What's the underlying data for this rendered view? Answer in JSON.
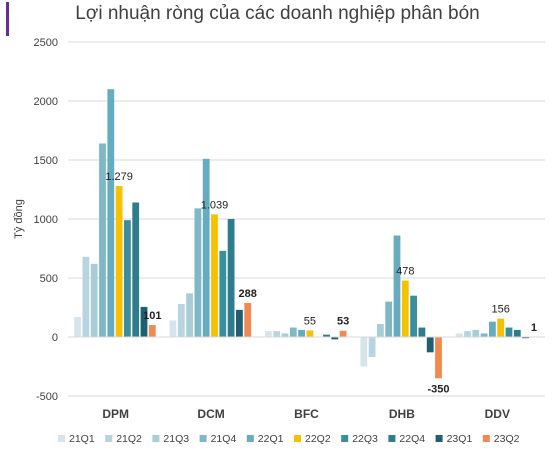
{
  "chart_data": {
    "type": "bar",
    "title": "Lợi nhuận ròng của các doanh nghiệp phân bón",
    "ylabel": "Tỷ đồng",
    "xlabel": "",
    "ylim": [
      -500,
      2500
    ],
    "yticks": [
      "-500",
      "0",
      "500",
      "1000",
      "1500",
      "2000",
      "2500"
    ],
    "grid": true,
    "legend_position": "bottom",
    "categories": [
      "DPM",
      "DCM",
      "BFC",
      "DHB",
      "DDV"
    ],
    "series": [
      {
        "name": "21Q1",
        "color": "#d6e4ec",
        "values": [
          170,
          140,
          50,
          -250,
          30
        ]
      },
      {
        "name": "21Q2",
        "color": "#b7d5e0",
        "values": [
          680,
          280,
          50,
          -170,
          50
        ]
      },
      {
        "name": "21Q3",
        "color": "#a8cdd7",
        "values": [
          620,
          370,
          30,
          110,
          60
        ]
      },
      {
        "name": "21Q4",
        "color": "#7fb7c6",
        "values": [
          1640,
          1090,
          80,
          300,
          30
        ]
      },
      {
        "name": "22Q1",
        "color": "#66acc1",
        "values": [
          2100,
          1510,
          60,
          860,
          130
        ]
      },
      {
        "name": "22Q2",
        "color": "#f5c100",
        "values": [
          1279,
          1039,
          55,
          478,
          156
        ]
      },
      {
        "name": "22Q3",
        "color": "#3a8f9c",
        "values": [
          990,
          730,
          0,
          350,
          80
        ]
      },
      {
        "name": "22Q4",
        "color": "#2e7d8d",
        "values": [
          1140,
          1000,
          20,
          80,
          60
        ]
      },
      {
        "name": "23Q1",
        "color": "#1f5f71",
        "values": [
          255,
          230,
          -20,
          -130,
          -10
        ]
      },
      {
        "name": "23Q2",
        "color": "#f08a50",
        "values": [
          101,
          288,
          53,
          -350,
          1
        ]
      }
    ],
    "data_labels": [
      {
        "category": 0,
        "series": 5,
        "text": "1.279"
      },
      {
        "category": 0,
        "series": 9,
        "text": "101"
      },
      {
        "category": 1,
        "series": 5,
        "text": "1.039"
      },
      {
        "category": 1,
        "series": 9,
        "text": "288"
      },
      {
        "category": 2,
        "series": 5,
        "text": "55"
      },
      {
        "category": 2,
        "series": 9,
        "text": "53"
      },
      {
        "category": 3,
        "series": 5,
        "text": "478"
      },
      {
        "category": 3,
        "series": 9,
        "text": "-350"
      },
      {
        "category": 4,
        "series": 5,
        "text": "156"
      },
      {
        "category": 4,
        "series": 9,
        "text": "1"
      }
    ]
  }
}
